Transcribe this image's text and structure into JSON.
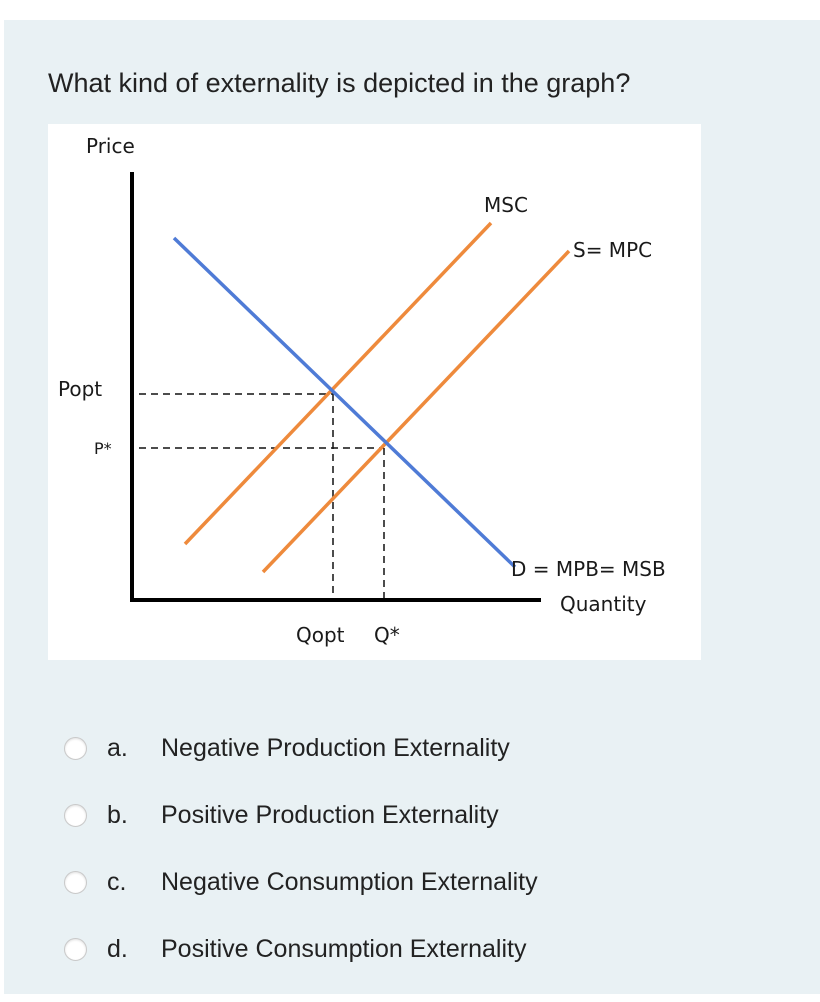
{
  "question": "What kind of externality is depicted in the graph?",
  "graph": {
    "y_axis_label": "Price",
    "x_axis_label": "Quantity",
    "price_opt_label": "Popt",
    "price_star_label": "P*",
    "qty_opt_label": "Qopt",
    "qty_star_label": "Q*",
    "msc_label": "MSC",
    "supply_label": "S= MPC",
    "demand_label": "D = MPB= MSB",
    "colors": {
      "demand": "#4f7bd6",
      "supply": "#ee8a3c",
      "axis": "#000000"
    }
  },
  "options": [
    {
      "letter": "a.",
      "text": "Negative Production Externality"
    },
    {
      "letter": "b.",
      "text": "Positive Production Externality"
    },
    {
      "letter": "c.",
      "text": "Negative Consumption Externality"
    },
    {
      "letter": "d.",
      "text": "Positive Consumption Externality"
    }
  ]
}
